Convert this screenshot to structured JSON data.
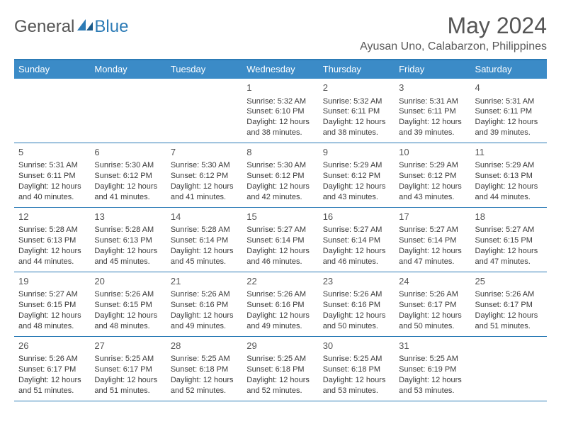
{
  "brand": {
    "text_a": "General",
    "text_b": "Blue"
  },
  "header": {
    "month_title": "May 2024",
    "location": "Ayusan Uno, Calabarzon, Philippines"
  },
  "colors": {
    "accent": "#2c7bb6",
    "header_bg": "#3b8bc7",
    "text": "#333333",
    "muted": "#555555"
  },
  "day_names": [
    "Sunday",
    "Monday",
    "Tuesday",
    "Wednesday",
    "Thursday",
    "Friday",
    "Saturday"
  ],
  "weeks": [
    [
      null,
      null,
      null,
      {
        "n": "1",
        "sr": "5:32 AM",
        "ss": "6:10 PM",
        "dl": "12 hours and 38 minutes."
      },
      {
        "n": "2",
        "sr": "5:32 AM",
        "ss": "6:11 PM",
        "dl": "12 hours and 38 minutes."
      },
      {
        "n": "3",
        "sr": "5:31 AM",
        "ss": "6:11 PM",
        "dl": "12 hours and 39 minutes."
      },
      {
        "n": "4",
        "sr": "5:31 AM",
        "ss": "6:11 PM",
        "dl": "12 hours and 39 minutes."
      }
    ],
    [
      {
        "n": "5",
        "sr": "5:31 AM",
        "ss": "6:11 PM",
        "dl": "12 hours and 40 minutes."
      },
      {
        "n": "6",
        "sr": "5:30 AM",
        "ss": "6:12 PM",
        "dl": "12 hours and 41 minutes."
      },
      {
        "n": "7",
        "sr": "5:30 AM",
        "ss": "6:12 PM",
        "dl": "12 hours and 41 minutes."
      },
      {
        "n": "8",
        "sr": "5:30 AM",
        "ss": "6:12 PM",
        "dl": "12 hours and 42 minutes."
      },
      {
        "n": "9",
        "sr": "5:29 AM",
        "ss": "6:12 PM",
        "dl": "12 hours and 43 minutes."
      },
      {
        "n": "10",
        "sr": "5:29 AM",
        "ss": "6:12 PM",
        "dl": "12 hours and 43 minutes."
      },
      {
        "n": "11",
        "sr": "5:29 AM",
        "ss": "6:13 PM",
        "dl": "12 hours and 44 minutes."
      }
    ],
    [
      {
        "n": "12",
        "sr": "5:28 AM",
        "ss": "6:13 PM",
        "dl": "12 hours and 44 minutes."
      },
      {
        "n": "13",
        "sr": "5:28 AM",
        "ss": "6:13 PM",
        "dl": "12 hours and 45 minutes."
      },
      {
        "n": "14",
        "sr": "5:28 AM",
        "ss": "6:14 PM",
        "dl": "12 hours and 45 minutes."
      },
      {
        "n": "15",
        "sr": "5:27 AM",
        "ss": "6:14 PM",
        "dl": "12 hours and 46 minutes."
      },
      {
        "n": "16",
        "sr": "5:27 AM",
        "ss": "6:14 PM",
        "dl": "12 hours and 46 minutes."
      },
      {
        "n": "17",
        "sr": "5:27 AM",
        "ss": "6:14 PM",
        "dl": "12 hours and 47 minutes."
      },
      {
        "n": "18",
        "sr": "5:27 AM",
        "ss": "6:15 PM",
        "dl": "12 hours and 47 minutes."
      }
    ],
    [
      {
        "n": "19",
        "sr": "5:27 AM",
        "ss": "6:15 PM",
        "dl": "12 hours and 48 minutes."
      },
      {
        "n": "20",
        "sr": "5:26 AM",
        "ss": "6:15 PM",
        "dl": "12 hours and 48 minutes."
      },
      {
        "n": "21",
        "sr": "5:26 AM",
        "ss": "6:16 PM",
        "dl": "12 hours and 49 minutes."
      },
      {
        "n": "22",
        "sr": "5:26 AM",
        "ss": "6:16 PM",
        "dl": "12 hours and 49 minutes."
      },
      {
        "n": "23",
        "sr": "5:26 AM",
        "ss": "6:16 PM",
        "dl": "12 hours and 50 minutes."
      },
      {
        "n": "24",
        "sr": "5:26 AM",
        "ss": "6:17 PM",
        "dl": "12 hours and 50 minutes."
      },
      {
        "n": "25",
        "sr": "5:26 AM",
        "ss": "6:17 PM",
        "dl": "12 hours and 51 minutes."
      }
    ],
    [
      {
        "n": "26",
        "sr": "5:26 AM",
        "ss": "6:17 PM",
        "dl": "12 hours and 51 minutes."
      },
      {
        "n": "27",
        "sr": "5:25 AM",
        "ss": "6:17 PM",
        "dl": "12 hours and 51 minutes."
      },
      {
        "n": "28",
        "sr": "5:25 AM",
        "ss": "6:18 PM",
        "dl": "12 hours and 52 minutes."
      },
      {
        "n": "29",
        "sr": "5:25 AM",
        "ss": "6:18 PM",
        "dl": "12 hours and 52 minutes."
      },
      {
        "n": "30",
        "sr": "5:25 AM",
        "ss": "6:18 PM",
        "dl": "12 hours and 53 minutes."
      },
      {
        "n": "31",
        "sr": "5:25 AM",
        "ss": "6:19 PM",
        "dl": "12 hours and 53 minutes."
      },
      null
    ]
  ],
  "labels": {
    "sunrise": "Sunrise:",
    "sunset": "Sunset:",
    "daylight": "Daylight:"
  }
}
